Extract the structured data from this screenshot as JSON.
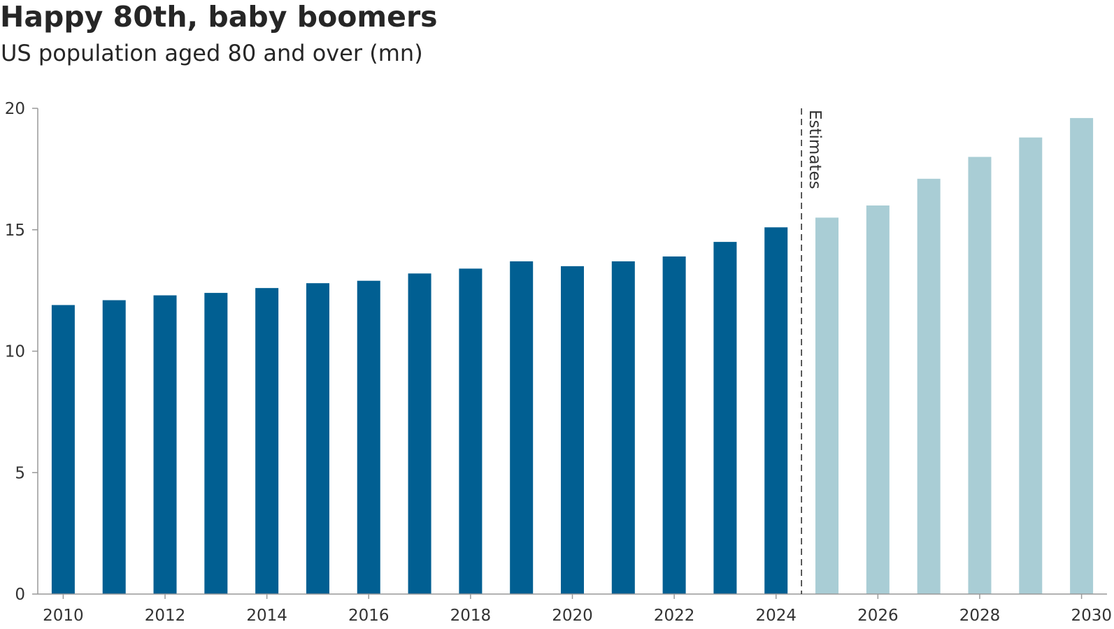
{
  "chart_data": {
    "type": "bar",
    "title": "Happy 80th, baby boomers",
    "subtitle": "US population aged 80 and over (mn)",
    "xlabel": "",
    "ylabel": "",
    "ylim": [
      0,
      20
    ],
    "yticks": [
      0,
      5,
      10,
      15,
      20
    ],
    "categories": [
      "2010",
      "2011",
      "2012",
      "2013",
      "2014",
      "2015",
      "2016",
      "2017",
      "2018",
      "2019",
      "2020",
      "2021",
      "2022",
      "2023",
      "2024",
      "2025",
      "2026",
      "2027",
      "2028",
      "2029",
      "2030"
    ],
    "xtick_labels": [
      "2010",
      "2012",
      "2014",
      "2016",
      "2018",
      "2020",
      "2022",
      "2024",
      "2026",
      "2028",
      "2030"
    ],
    "values": [
      11.9,
      12.1,
      12.3,
      12.4,
      12.6,
      12.8,
      12.9,
      13.2,
      13.4,
      13.7,
      13.5,
      13.7,
      13.9,
      14.5,
      15.1,
      15.5,
      16.0,
      17.1,
      18.0,
      18.8,
      19.6
    ],
    "estimate_start_index": 15,
    "annotation": "Estimates",
    "grid": false,
    "colors": {
      "actual": "#015f92",
      "estimate": "#a9cdd5",
      "axis": "#999999",
      "divider": "#333333"
    }
  }
}
